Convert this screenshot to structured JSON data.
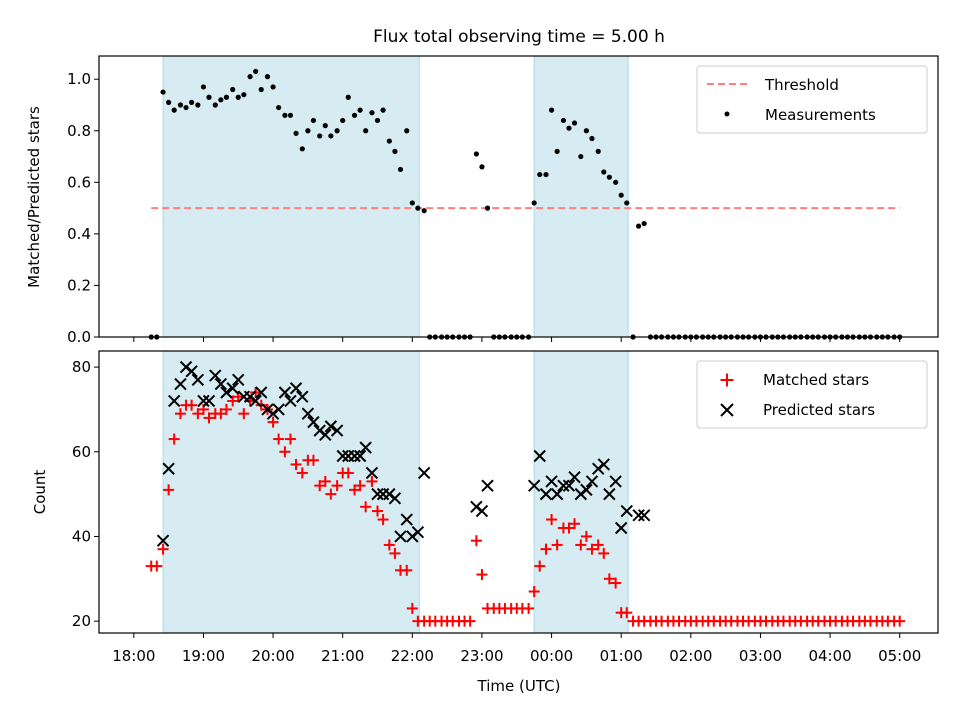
{
  "chart_data": [
    {
      "type": "scatter",
      "panel": "top",
      "title": "Flux total observing time = 5.00 h",
      "ylabel": "Matched/Predicted stars",
      "xlabel": "",
      "xlim": [
        17.5,
        29.55
      ],
      "ylim": [
        0,
        1.09
      ],
      "yticks": [
        0.0,
        0.2,
        0.4,
        0.6,
        0.8,
        1.0
      ],
      "ytick_labels": [
        "0.0",
        "0.2",
        "0.4",
        "0.6",
        "0.8",
        "1.0"
      ],
      "grid": false,
      "legend": {
        "placement": "top-right",
        "entries": [
          "Threshold",
          "Measurements"
        ]
      },
      "shaded_intervals": [
        [
          18.42,
          22.1
        ],
        [
          23.75,
          25.1
        ]
      ],
      "threshold": {
        "name": "Threshold",
        "x": [
          18.25,
          29.0
        ],
        "y": 0.5,
        "color": "#ff7f7f",
        "style": "dashed"
      },
      "series": [
        {
          "name": "Measurements",
          "color": "#000000",
          "x": [
            18.25,
            18.33,
            18.42,
            18.5,
            18.58,
            18.67,
            18.75,
            18.83,
            18.92,
            19.0,
            19.08,
            19.17,
            19.25,
            19.33,
            19.42,
            19.5,
            19.58,
            19.67,
            19.75,
            19.83,
            19.92,
            20.0,
            20.08,
            20.17,
            20.25,
            20.33,
            20.42,
            20.5,
            20.58,
            20.67,
            20.75,
            20.83,
            20.92,
            21.0,
            21.08,
            21.17,
            21.25,
            21.33,
            21.42,
            21.5,
            21.58,
            21.67,
            21.75,
            21.83,
            21.92,
            22.0,
            22.08,
            22.17,
            22.25,
            22.33,
            22.42,
            22.5,
            22.58,
            22.67,
            22.75,
            22.83,
            22.92,
            23.0,
            23.08,
            23.17,
            23.25,
            23.33,
            23.42,
            23.5,
            23.58,
            23.67,
            23.75,
            23.83,
            23.92,
            24.0,
            24.08,
            24.17,
            24.25,
            24.33,
            24.42,
            24.5,
            24.58,
            24.67,
            24.75,
            24.83,
            24.92,
            25.0,
            25.08,
            25.17,
            25.25,
            25.33,
            25.42,
            25.5,
            25.58,
            25.67,
            25.75,
            25.83,
            25.92,
            26.0,
            26.08,
            26.17,
            26.25,
            26.33,
            26.42,
            26.5,
            26.58,
            26.67,
            26.75,
            26.83,
            26.92,
            27.0,
            27.08,
            27.17,
            27.25,
            27.33,
            27.42,
            27.5,
            27.58,
            27.67,
            27.75,
            27.83,
            27.92,
            28.0,
            28.08,
            28.17,
            28.25,
            28.33,
            28.42,
            28.5,
            28.58,
            28.67,
            28.75,
            28.83,
            28.92,
            29.0
          ],
          "y": [
            0.0,
            0.0,
            0.95,
            0.91,
            0.88,
            0.9,
            0.89,
            0.91,
            0.9,
            0.97,
            0.93,
            0.9,
            0.92,
            0.93,
            0.96,
            0.93,
            0.94,
            1.01,
            1.03,
            0.96,
            1.01,
            0.97,
            0.89,
            0.86,
            0.86,
            0.79,
            0.73,
            0.8,
            0.84,
            0.78,
            0.82,
            0.78,
            0.8,
            0.84,
            0.93,
            0.86,
            0.88,
            0.8,
            0.87,
            0.84,
            0.88,
            0.76,
            0.72,
            0.65,
            0.8,
            0.52,
            0.5,
            0.49,
            0.0,
            0.0,
            0.0,
            0.0,
            0.0,
            0.0,
            0.0,
            0.0,
            0.71,
            0.66,
            0.5,
            0.0,
            0.0,
            0.0,
            0.0,
            0.0,
            0.0,
            0.0,
            0.52,
            0.63,
            0.63,
            0.88,
            0.72,
            0.84,
            0.81,
            0.83,
            0.7,
            0.8,
            0.77,
            0.72,
            0.64,
            0.62,
            0.6,
            0.55,
            0.52,
            0.0,
            0.43,
            0.44,
            0.0,
            0.0,
            0.0,
            0.0,
            0.0,
            0.0,
            0.0,
            0.0,
            0.0,
            0.0,
            0.0,
            0.0,
            0.0,
            0.0,
            0.0,
            0.0,
            0.0,
            0.0,
            0.0,
            0.0,
            0.0,
            0.0,
            0.0,
            0.0,
            0.0,
            0.0,
            0.0,
            0.0,
            0.0,
            0.0,
            0.0,
            0.0,
            0.0,
            0.0,
            0.0,
            0.0,
            0.0,
            0.0,
            0.0,
            0.0,
            0.0,
            0.0,
            0.0,
            0.0
          ]
        }
      ]
    },
    {
      "type": "scatter",
      "panel": "bottom",
      "title": "",
      "ylabel": "Count",
      "xlabel": "Time (UTC)",
      "xlim": [
        17.5,
        29.55
      ],
      "ylim": [
        17.2,
        83.8
      ],
      "yticks": [
        20,
        40,
        60,
        80
      ],
      "ytick_labels": [
        "20",
        "40",
        "60",
        "80"
      ],
      "xticks": [
        18,
        19,
        20,
        21,
        22,
        23,
        24,
        25,
        26,
        27,
        28,
        29
      ],
      "xtick_labels": [
        "18:00",
        "19:00",
        "20:00",
        "21:00",
        "22:00",
        "23:00",
        "00:00",
        "01:00",
        "02:00",
        "03:00",
        "04:00",
        "05:00"
      ],
      "grid": false,
      "legend": {
        "placement": "top-right",
        "entries": [
          "Matched stars",
          "Predicted stars"
        ]
      },
      "shaded_intervals": [
        [
          18.42,
          22.1
        ],
        [
          23.75,
          25.1
        ]
      ],
      "series": [
        {
          "name": "Matched stars",
          "marker": "plus",
          "color": "#ff0000",
          "x": [
            18.25,
            18.33,
            18.42,
            18.5,
            18.58,
            18.67,
            18.75,
            18.83,
            18.92,
            19.0,
            19.08,
            19.17,
            19.25,
            19.33,
            19.42,
            19.5,
            19.58,
            19.67,
            19.75,
            19.83,
            19.92,
            20.0,
            20.08,
            20.17,
            20.25,
            20.33,
            20.42,
            20.5,
            20.58,
            20.67,
            20.75,
            20.83,
            20.92,
            21.0,
            21.08,
            21.17,
            21.25,
            21.33,
            21.42,
            21.5,
            21.58,
            21.67,
            21.75,
            21.83,
            21.92,
            22.0,
            22.08,
            22.17,
            22.25,
            22.33,
            22.42,
            22.5,
            22.58,
            22.67,
            22.75,
            22.83,
            22.92,
            23.0,
            23.08,
            23.17,
            23.25,
            23.33,
            23.42,
            23.5,
            23.58,
            23.67,
            23.75,
            23.83,
            23.92,
            24.0,
            24.08,
            24.17,
            24.25,
            24.33,
            24.42,
            24.5,
            24.58,
            24.67,
            24.75,
            24.83,
            24.92,
            25.0,
            25.08,
            25.17,
            25.25,
            25.33,
            25.42,
            25.5,
            25.58,
            25.67,
            25.75,
            25.83,
            25.92,
            26.0,
            26.08,
            26.17,
            26.25,
            26.33,
            26.42,
            26.5,
            26.58,
            26.67,
            26.75,
            26.83,
            26.92,
            27.0,
            27.08,
            27.17,
            27.25,
            27.33,
            27.42,
            27.5,
            27.58,
            27.67,
            27.75,
            27.83,
            27.92,
            28.0,
            28.08,
            28.17,
            28.25,
            28.33,
            28.42,
            28.5,
            28.58,
            28.67,
            28.75,
            28.83,
            28.92,
            29.0
          ],
          "y": [
            33,
            33,
            37,
            51,
            63,
            69,
            71,
            71,
            69,
            70,
            68,
            69,
            69,
            70,
            72,
            73,
            69,
            72,
            74,
            71,
            70,
            67,
            63,
            60,
            63,
            57,
            55,
            58,
            58,
            52,
            53,
            50,
            52,
            55,
            55,
            51,
            52,
            47,
            53,
            46,
            44,
            38,
            36,
            32,
            32,
            23,
            20,
            20,
            20,
            20,
            20,
            20,
            20,
            20,
            20,
            20,
            39,
            31,
            23,
            23,
            23,
            23,
            23,
            23,
            23,
            23,
            27,
            33,
            37,
            44,
            38,
            42,
            42,
            43,
            38,
            40,
            37,
            38,
            36,
            30,
            29,
            22,
            22,
            20,
            20,
            20,
            20,
            20,
            20,
            20,
            20,
            20,
            20,
            20,
            20,
            20,
            20,
            20,
            20,
            20,
            20,
            20,
            20,
            20,
            20,
            20,
            20,
            20,
            20,
            20,
            20,
            20,
            20,
            20,
            20,
            20,
            20,
            20,
            20,
            20,
            20,
            20,
            20,
            20,
            20,
            20,
            20,
            20,
            20,
            20
          ]
        },
        {
          "name": "Predicted stars",
          "marker": "x",
          "color": "#000000",
          "x": [
            18.42,
            18.5,
            18.58,
            18.67,
            18.75,
            18.83,
            18.92,
            19.0,
            19.08,
            19.17,
            19.25,
            19.33,
            19.42,
            19.5,
            19.58,
            19.67,
            19.75,
            19.83,
            19.92,
            20.0,
            20.08,
            20.17,
            20.25,
            20.33,
            20.42,
            20.5,
            20.58,
            20.67,
            20.75,
            20.83,
            20.92,
            21.0,
            21.08,
            21.17,
            21.25,
            21.33,
            21.42,
            21.5,
            21.58,
            21.67,
            21.75,
            21.83,
            21.92,
            22.0,
            22.08,
            22.17,
            22.92,
            23.0,
            23.08,
            23.75,
            23.83,
            23.92,
            24.0,
            24.08,
            24.17,
            24.25,
            24.33,
            24.42,
            24.5,
            24.58,
            24.67,
            24.75,
            24.83,
            24.92,
            25.0,
            25.08,
            25.25,
            25.33
          ],
          "y": [
            39,
            56,
            72,
            76,
            80,
            79,
            77,
            72,
            72,
            78,
            76,
            74,
            75,
            77,
            73,
            73,
            72,
            74,
            70,
            69,
            70,
            74,
            72,
            75,
            73,
            69,
            67,
            65,
            64,
            66,
            65,
            59,
            59,
            59,
            59,
            61,
            55,
            50,
            50,
            50,
            49,
            40,
            44,
            40,
            41,
            55,
            47,
            46,
            52,
            52,
            59,
            50,
            53,
            50,
            52,
            52,
            54,
            50,
            51,
            53,
            56,
            57,
            50,
            53,
            42,
            46,
            45,
            45
          ]
        }
      ]
    }
  ]
}
